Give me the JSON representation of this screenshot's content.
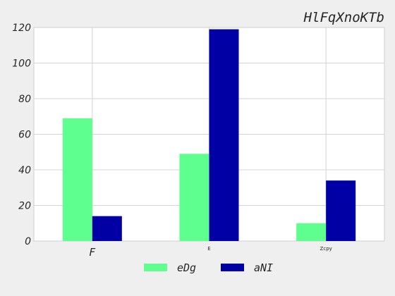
{
  "chart_data": {
    "type": "bar",
    "title": "HlFqXnoKTb",
    "xlabel": "",
    "ylabel": "",
    "categories": [
      "F",
      "E",
      "Zcpy"
    ],
    "series": [
      {
        "name": "eDg",
        "values": [
          69,
          49,
          10
        ],
        "color": "#5eff8e"
      },
      {
        "name": "aNI",
        "values": [
          14,
          119,
          34
        ],
        "color": "#0000a5"
      }
    ],
    "ylim": [
      0,
      120
    ],
    "yticks": [
      0,
      20,
      40,
      60,
      80,
      100,
      120
    ],
    "grid": true,
    "legend_position": "bottom-center"
  }
}
